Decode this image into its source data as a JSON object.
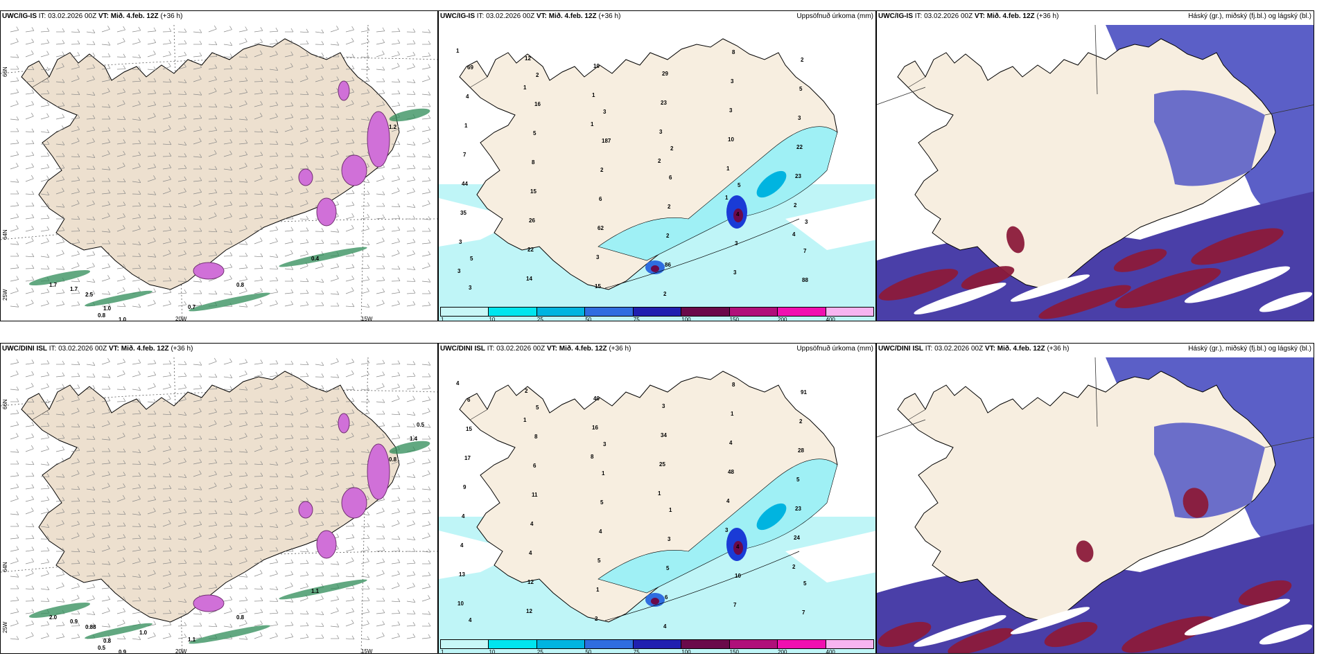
{
  "rows": [
    {
      "model": "UWC/IG-IS",
      "init": "IT: 03.02.2026 00Z",
      "vt": "VT: Mið. 4.feb. 12Z",
      "lead": "(+36 h)",
      "precip_labels": [
        "1",
        "1",
        "1",
        "2",
        "1",
        "4",
        "3",
        "12",
        "1",
        "3",
        "1",
        "2",
        "3",
        "14",
        "10",
        "23",
        "10",
        "23",
        "35",
        "22",
        "15",
        "29",
        "3",
        "22",
        "44",
        "26",
        "3",
        "2",
        "3",
        "3",
        "7",
        "15",
        "62",
        "86",
        "8",
        "5",
        "1",
        "8",
        "6",
        "2",
        "3",
        "2",
        "4",
        "5",
        "2",
        "2",
        "3",
        "88",
        "69",
        "16",
        "187",
        "6",
        "4",
        "7",
        "3",
        "2",
        "3",
        "2",
        "5",
        "3",
        "5"
      ],
      "wind_labels": [
        "1.7",
        "1.7",
        "2.5",
        "1.0",
        "0.8",
        "1.0",
        "0.7",
        "0.8",
        "0.4",
        "1.2"
      ]
    },
    {
      "model": "UWC/DINI ISL",
      "init": "IT: 03.02.2026 00Z",
      "vt": "VT: Mið. 4.feb. 12Z",
      "lead": "(+36 h)",
      "precip_labels": [
        "4",
        "1",
        "8",
        "1",
        "3",
        "2",
        "10",
        "2",
        "16",
        "25",
        "4",
        "24",
        "13",
        "12",
        "40",
        "34",
        "48",
        "23",
        "4",
        "12",
        "2",
        "3",
        "4",
        "5",
        "4",
        "4",
        "1",
        "4",
        "1",
        "28",
        "9",
        "4",
        "5",
        "6",
        "8",
        "2",
        "17",
        "11",
        "4",
        "5",
        "7",
        "91",
        "15",
        "6",
        "5",
        "3",
        "10",
        "7",
        "6",
        "8",
        "1",
        "1",
        "4",
        "5",
        "4",
        "5",
        "3"
      ],
      "wind_labels": [
        "2.0",
        "0.9",
        "0.88",
        "0.8",
        "0.5",
        "0.9",
        "1.1",
        "0.8",
        "1.1",
        "0.8",
        "0.5",
        "1.4",
        "1.0"
      ]
    }
  ],
  "precip_title": "Uppsöfnuð úrkoma (mm)",
  "cloud_title": "Háský (gr.), miðský (fj.bl.) og lágský (bl.)",
  "lon_labels": [
    "20W",
    "15W"
  ],
  "lat_labels": [
    "66N",
    "64N",
    "25W"
  ],
  "colorbar": {
    "ticks": [
      "1",
      "10",
      "25",
      "50",
      "75",
      "100",
      "150",
      "200",
      "400"
    ],
    "colors": [
      "#c8f7f7",
      "#00e5ee",
      "#00b4e0",
      "#2f6de0",
      "#2020b0",
      "#6a0a4a",
      "#b0107a",
      "#f010b0",
      "#f7b4f0"
    ]
  },
  "colors": {
    "land": "#f7eee0",
    "land_wind": "#ede0cf",
    "sea": "#ffffff",
    "cyan_light": "#bff5f7",
    "cloud_high": "#5b5fc7",
    "cloud_mid": "#8b1a3a",
    "cloud_low": "#7ab0f0",
    "wind_green": "#2e8b57",
    "snow_pink": "#d070d8"
  }
}
